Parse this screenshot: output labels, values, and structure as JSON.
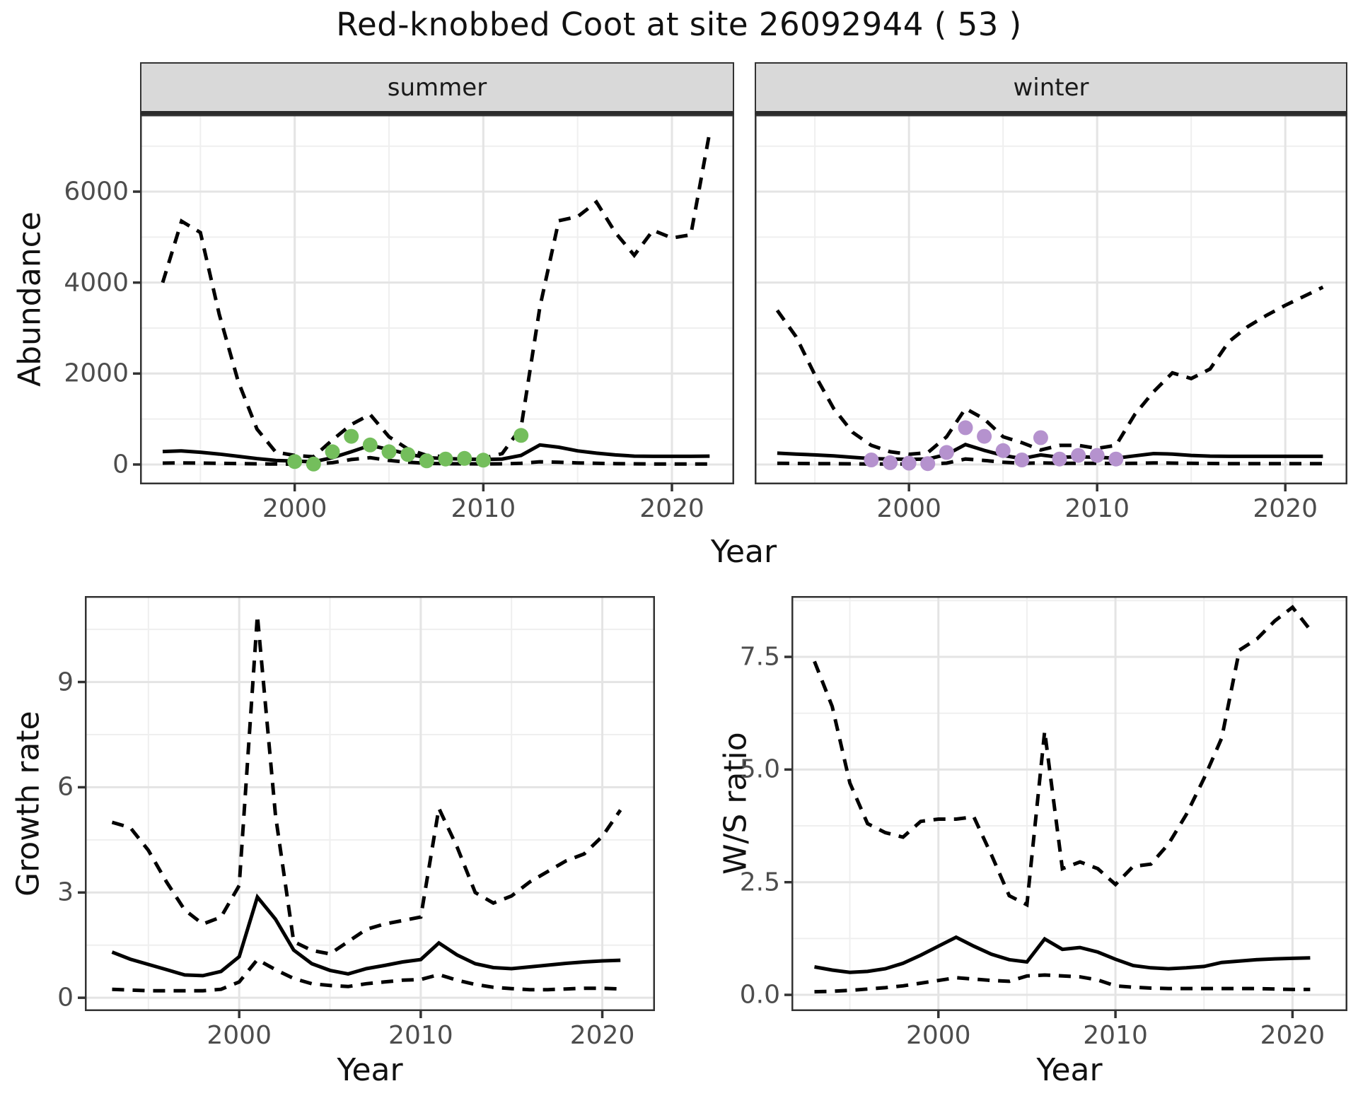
{
  "title": "Red-knobbed Coot at site 26092944 ( 53 )",
  "colors": {
    "summer_points": "#74BE5C",
    "winter_points": "#B592CE",
    "line": "#000000",
    "panel_border": "#333333",
    "grid_major": "#E4E4E4",
    "grid_minor": "#EFEFEF",
    "strip_background": "#D9D9D9",
    "tick_label_text": "#4D4D4D",
    "axis_title_text": "#111111"
  },
  "chart_data": [
    {
      "id": "abundance-summer",
      "type": "line",
      "facet_label": "summer",
      "xlabel": "Year",
      "ylabel": "Abundance",
      "xlim": [
        1991.8,
        2023.3
      ],
      "ylim": [
        -436,
        7695
      ],
      "x": [
        1993,
        1994,
        1995,
        1996,
        1997,
        1998,
        1999,
        2000,
        2001,
        2002,
        2003,
        2004,
        2005,
        2006,
        2007,
        2008,
        2009,
        2010,
        2011,
        2012,
        2013,
        2014,
        2015,
        2016,
        2017,
        2018,
        2019,
        2020,
        2021,
        2022
      ],
      "xticks": [
        2000,
        2010,
        2020
      ],
      "xtick_labels": [
        "2000",
        "2010",
        "2020"
      ],
      "xminor": [
        1995,
        2005,
        2015
      ],
      "yticks": [
        0,
        2000,
        4000,
        6000
      ],
      "ytick_labels": [
        "0",
        "2000",
        "4000",
        "6000"
      ],
      "yminor": [
        1000,
        3000,
        5000,
        7000
      ],
      "show_ytick_labels": true,
      "series": [
        {
          "name": "upper_credible_interval",
          "linestyle": "dashed",
          "values": [
            4000,
            5350,
            5100,
            3300,
            1830,
            780,
            270,
            200,
            170,
            540,
            880,
            1100,
            610,
            340,
            200,
            170,
            150,
            135,
            240,
            810,
            3460,
            5360,
            5450,
            5770,
            5100,
            4600,
            5150,
            4980,
            5050,
            7300
          ]
        },
        {
          "name": "modelled_abundance",
          "linestyle": "solid",
          "values": [
            285,
            300,
            270,
            230,
            180,
            130,
            90,
            75,
            60,
            150,
            280,
            420,
            330,
            230,
            150,
            130,
            120,
            110,
            120,
            200,
            430,
            380,
            300,
            250,
            210,
            185,
            180,
            180,
            180,
            185
          ]
        },
        {
          "name": "lower_credible_interval",
          "linestyle": "dashed",
          "values": [
            30,
            35,
            30,
            25,
            20,
            15,
            10,
            8,
            8,
            40,
            110,
            150,
            90,
            50,
            25,
            18,
            15,
            12,
            15,
            25,
            60,
            50,
            35,
            25,
            20,
            15,
            12,
            12,
            12,
            12
          ]
        }
      ],
      "points": {
        "name": "observed_summer_counts",
        "color_key": "summer_points",
        "x": [
          2000,
          2001,
          2002,
          2003,
          2004,
          2005,
          2006,
          2007,
          2008,
          2009,
          2010,
          2012
        ],
        "y": [
          65,
          10,
          280,
          620,
          430,
          280,
          220,
          80,
          120,
          135,
          95,
          640
        ]
      }
    },
    {
      "id": "abundance-winter",
      "type": "line",
      "facet_label": "winter",
      "xlabel": "Year",
      "ylabel": "Abundance",
      "xlim": [
        1991.8,
        2023.3
      ],
      "ylim": [
        -436,
        7695
      ],
      "x": [
        1993,
        1994,
        1995,
        1996,
        1997,
        1998,
        1999,
        2000,
        2001,
        2002,
        2003,
        2004,
        2005,
        2006,
        2007,
        2008,
        2009,
        2010,
        2011,
        2012,
        2013,
        2014,
        2015,
        2016,
        2017,
        2018,
        2019,
        2020,
        2021,
        2022
      ],
      "xticks": [
        2000,
        2010,
        2020
      ],
      "xtick_labels": [
        "2000",
        "2010",
        "2020"
      ],
      "xminor": [
        1995,
        2005,
        2015
      ],
      "yticks": [
        0,
        2000,
        4000,
        6000
      ],
      "ytick_labels": [
        "0",
        "2000",
        "4000",
        "6000"
      ],
      "yminor": [
        1000,
        3000,
        5000,
        7000
      ],
      "show_ytick_labels": false,
      "series": [
        {
          "name": "upper_credible_interval",
          "linestyle": "dashed",
          "values": [
            3390,
            2810,
            1970,
            1230,
            710,
            420,
            280,
            225,
            260,
            610,
            1230,
            1000,
            610,
            480,
            320,
            420,
            420,
            355,
            420,
            1100,
            1600,
            2015,
            1890,
            2100,
            2700,
            3030,
            3280,
            3500,
            3700,
            3900
          ]
        },
        {
          "name": "modelled_abundance",
          "linestyle": "solid",
          "values": [
            250,
            230,
            210,
            190,
            160,
            130,
            120,
            115,
            120,
            220,
            440,
            310,
            200,
            130,
            210,
            160,
            170,
            160,
            140,
            190,
            240,
            230,
            200,
            185,
            180,
            180,
            180,
            180,
            180,
            180
          ]
        },
        {
          "name": "lower_credible_interval",
          "linestyle": "dashed",
          "values": [
            25,
            22,
            20,
            18,
            15,
            12,
            10,
            10,
            12,
            30,
            120,
            90,
            50,
            25,
            35,
            25,
            28,
            25,
            22,
            25,
            35,
            30,
            25,
            22,
            20,
            20,
            20,
            20,
            20,
            20
          ]
        }
      ],
      "points": {
        "name": "observed_winter_counts",
        "color_key": "winter_points",
        "x": [
          1998,
          1999,
          2000,
          2001,
          2002,
          2003,
          2004,
          2005,
          2006,
          2007,
          2008,
          2009,
          2010,
          2011
        ],
        "y": [
          100,
          40,
          30,
          20,
          265,
          810,
          620,
          305,
          100,
          590,
          120,
          200,
          200,
          120
        ]
      }
    },
    {
      "id": "growth-rate",
      "type": "line",
      "facet_label": null,
      "xlabel": "Year",
      "ylabel": "Growth rate",
      "xlim": [
        1991.5,
        2022.9
      ],
      "ylim": [
        -0.38,
        11.45
      ],
      "x": [
        1993,
        1994,
        1995,
        1996,
        1997,
        1998,
        1999,
        2000,
        2001,
        2002,
        2003,
        2004,
        2005,
        2006,
        2007,
        2008,
        2009,
        2010,
        2011,
        2012,
        2013,
        2014,
        2015,
        2016,
        2017,
        2018,
        2019,
        2020,
        2021
      ],
      "xticks": [
        2000,
        2010,
        2020
      ],
      "xtick_labels": [
        "2000",
        "2010",
        "2020"
      ],
      "xminor": [
        1995,
        2005,
        2015
      ],
      "yticks": [
        0,
        3,
        6,
        9
      ],
      "ytick_labels": [
        "0",
        "3",
        "6",
        "9"
      ],
      "yminor": [
        1.5,
        4.5,
        7.5,
        10.5
      ],
      "show_ytick_labels": true,
      "series": [
        {
          "name": "upper_credible_interval",
          "linestyle": "dashed",
          "values": [
            5.0,
            4.85,
            4.2,
            3.3,
            2.5,
            2.1,
            2.3,
            3.2,
            10.9,
            5.2,
            1.6,
            1.35,
            1.25,
            1.6,
            1.95,
            2.1,
            2.2,
            2.3,
            5.4,
            4.3,
            3.0,
            2.7,
            2.9,
            3.3,
            3.6,
            3.9,
            4.1,
            4.6,
            5.35
          ]
        },
        {
          "name": "median_growth_rate",
          "linestyle": "solid",
          "values": [
            1.3,
            1.1,
            0.95,
            0.8,
            0.65,
            0.63,
            0.75,
            1.17,
            2.87,
            2.24,
            1.36,
            0.97,
            0.78,
            0.68,
            0.83,
            0.92,
            1.02,
            1.09,
            1.56,
            1.22,
            0.97,
            0.86,
            0.83,
            0.88,
            0.93,
            0.98,
            1.02,
            1.05,
            1.07
          ]
        },
        {
          "name": "lower_credible_interval",
          "linestyle": "dashed",
          "values": [
            0.24,
            0.22,
            0.2,
            0.2,
            0.2,
            0.2,
            0.24,
            0.45,
            1.09,
            0.8,
            0.55,
            0.4,
            0.35,
            0.32,
            0.4,
            0.45,
            0.5,
            0.52,
            0.66,
            0.5,
            0.38,
            0.3,
            0.26,
            0.23,
            0.23,
            0.25,
            0.27,
            0.27,
            0.25
          ]
        }
      ]
    },
    {
      "id": "ws-ratio",
      "type": "line",
      "facet_label": null,
      "xlabel": "Year",
      "ylabel": "W/S ratio",
      "xlim": [
        1991.7,
        2023.1
      ],
      "ylim": [
        -0.36,
        8.85
      ],
      "x": [
        1993,
        1994,
        1995,
        1996,
        1997,
        1998,
        1999,
        2000,
        2001,
        2002,
        2003,
        2004,
        2005,
        2006,
        2007,
        2008,
        2009,
        2010,
        2011,
        2012,
        2013,
        2014,
        2015,
        2016,
        2017,
        2018,
        2019,
        2020,
        2021
      ],
      "xticks": [
        2000,
        2010,
        2020
      ],
      "xtick_labels": [
        "2000",
        "2010",
        "2020"
      ],
      "xminor": [
        1995,
        2005,
        2015
      ],
      "yticks": [
        0,
        2.5,
        5.0,
        7.5
      ],
      "ytick_labels": [
        "0.0",
        "2.5",
        "5.0",
        "7.5"
      ],
      "yminor": [
        1.25,
        3.75,
        6.25,
        8.75
      ],
      "show_ytick_labels": true,
      "series": [
        {
          "name": "upper_credible_interval",
          "linestyle": "dashed",
          "values": [
            7.4,
            6.4,
            4.7,
            3.8,
            3.6,
            3.5,
            3.85,
            3.9,
            3.9,
            3.95,
            3.1,
            2.2,
            2.0,
            5.85,
            2.8,
            2.95,
            2.8,
            2.45,
            2.85,
            2.9,
            3.35,
            4.0,
            4.8,
            5.7,
            7.65,
            7.9,
            8.3,
            8.6,
            8.1
          ]
        },
        {
          "name": "median_ws_ratio",
          "linestyle": "solid",
          "values": [
            0.62,
            0.55,
            0.5,
            0.52,
            0.58,
            0.7,
            0.88,
            1.08,
            1.28,
            1.08,
            0.9,
            0.78,
            0.73,
            1.24,
            1.01,
            1.05,
            0.95,
            0.79,
            0.65,
            0.6,
            0.58,
            0.6,
            0.63,
            0.72,
            0.75,
            0.78,
            0.8,
            0.81,
            0.82
          ]
        },
        {
          "name": "lower_credible_interval",
          "linestyle": "dashed",
          "values": [
            0.07,
            0.08,
            0.1,
            0.13,
            0.16,
            0.2,
            0.26,
            0.32,
            0.38,
            0.35,
            0.32,
            0.3,
            0.42,
            0.44,
            0.42,
            0.4,
            0.33,
            0.2,
            0.17,
            0.15,
            0.14,
            0.14,
            0.14,
            0.14,
            0.14,
            0.14,
            0.13,
            0.12,
            0.12
          ]
        }
      ]
    }
  ]
}
